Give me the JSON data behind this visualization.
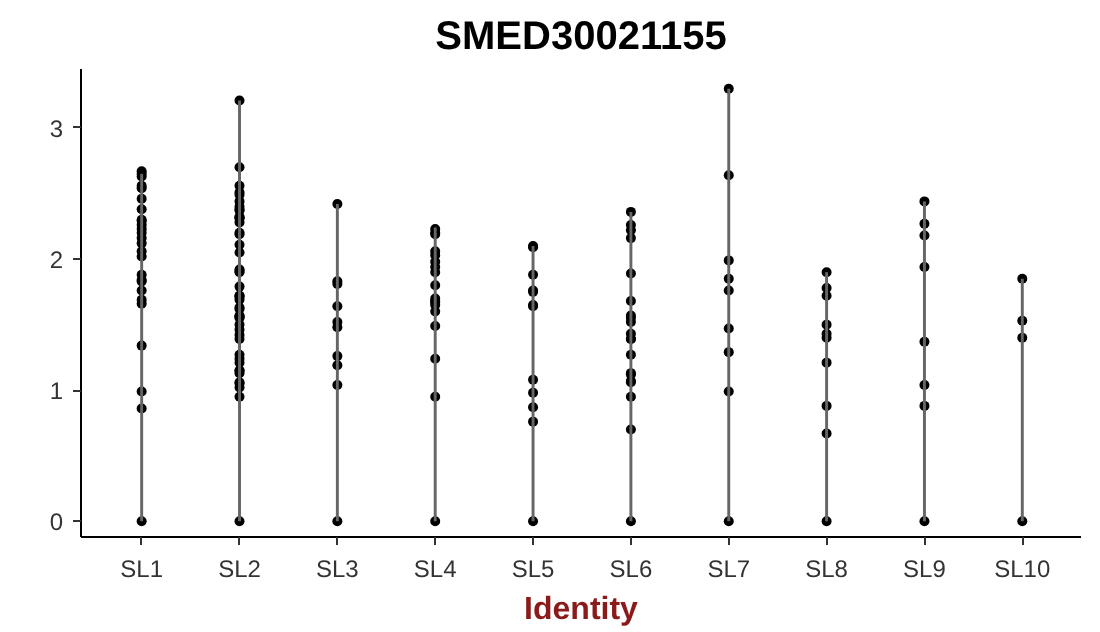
{
  "chart_data": {
    "type": "bar",
    "title": "SMED30021155",
    "xlabel": "Identity",
    "ylim": [
      -0.12,
      3.45
    ],
    "yticks": [
      0,
      1,
      2,
      3
    ],
    "categories": [
      "SL1",
      "SL2",
      "SL3",
      "SL4",
      "SL5",
      "SL6",
      "SL7",
      "SL8",
      "SL9",
      "SL10"
    ],
    "grid": false,
    "marker": "circle",
    "series": [
      {
        "color": "#666666",
        "values": [
          2.65,
          3.21,
          2.42,
          2.24,
          2.1,
          2.36,
          3.3,
          1.9,
          2.44,
          1.85
        ]
      },
      {
        "type": "scatter",
        "color": "#000000",
        "x": [
          "SL1",
          "SL1",
          "SL1",
          "SL1",
          "SL1",
          "SL1",
          "SL1",
          "SL1",
          "SL1",
          "SL1",
          "SL1",
          "SL1",
          "SL1",
          "SL1",
          "SL1",
          "SL1",
          "SL1",
          "SL1",
          "SL1",
          "SL1",
          "SL1",
          "SL1",
          "SL1",
          "SL1",
          "SL1",
          "SL1",
          "SL2",
          "SL2",
          "SL2",
          "SL2",
          "SL2",
          "SL2",
          "SL2",
          "SL2",
          "SL2",
          "SL2",
          "SL2",
          "SL2",
          "SL2",
          "SL2",
          "SL2",
          "SL2",
          "SL2",
          "SL2",
          "SL2",
          "SL2",
          "SL2",
          "SL2",
          "SL2",
          "SL2",
          "SL2",
          "SL2",
          "SL2",
          "SL2",
          "SL2",
          "SL2",
          "SL2",
          "SL2",
          "SL2",
          "SL2",
          "SL2",
          "SL2",
          "SL2",
          "SL2",
          "SL2",
          "SL2",
          "SL2",
          "SL2",
          "SL2",
          "SL2",
          "SL2",
          "SL2",
          "SL3",
          "SL3",
          "SL3",
          "SL3",
          "SL3",
          "SL3",
          "SL3",
          "SL3",
          "SL3",
          "SL3",
          "SL4",
          "SL4",
          "SL4",
          "SL4",
          "SL4",
          "SL4",
          "SL4",
          "SL4",
          "SL4",
          "SL4",
          "SL4",
          "SL4",
          "SL4",
          "SL4",
          "SL4",
          "SL4",
          "SL4",
          "SL4",
          "SL5",
          "SL5",
          "SL5",
          "SL5",
          "SL5",
          "SL5",
          "SL5",
          "SL5",
          "SL5",
          "SL5",
          "SL5",
          "SL5",
          "SL6",
          "SL6",
          "SL6",
          "SL6",
          "SL6",
          "SL6",
          "SL6",
          "SL6",
          "SL6",
          "SL6",
          "SL6",
          "SL6",
          "SL6",
          "SL6",
          "SL6",
          "SL6",
          "SL6",
          "SL6",
          "SL6",
          "SL6",
          "SL7",
          "SL7",
          "SL7",
          "SL7",
          "SL7",
          "SL7",
          "SL7",
          "SL7",
          "SL7",
          "SL8",
          "SL8",
          "SL8",
          "SL8",
          "SL8",
          "SL8",
          "SL8",
          "SL8",
          "SL8",
          "SL8",
          "SL9",
          "SL9",
          "SL9",
          "SL9",
          "SL9",
          "SL9",
          "SL9",
          "SL9",
          "SL10",
          "SL10",
          "SL10",
          "SL10"
        ],
        "values": [
          2.67,
          2.56,
          2.46,
          2.3,
          2.23,
          2.54,
          2.65,
          2.12,
          2.06,
          2.63,
          2.38,
          2.29,
          2.2,
          2.16,
          2.26,
          2.02,
          1.84,
          1.76,
          1.69,
          1.88,
          1.83,
          1.66,
          1.34,
          0.99,
          0.86,
          0,
          3.21,
          2.56,
          2.38,
          2.44,
          2.49,
          2.51,
          2.32,
          2.2,
          2.19,
          2.31,
          2.28,
          2.32,
          2.4,
          2.7,
          2.11,
          2.05,
          1.92,
          1.9,
          1.91,
          1.69,
          1.72,
          1.72,
          1.57,
          1.63,
          1.62,
          1.55,
          1.56,
          1.5,
          1.79,
          1.71,
          1.39,
          1.42,
          1.27,
          1.21,
          1.15,
          1.24,
          1.15,
          1.02,
          1.05,
          1.13,
          1.06,
          1.56,
          2.37,
          1.46,
          0.95,
          0,
          1.26,
          1.48,
          1.52,
          2.42,
          1.81,
          1.83,
          1.64,
          1.19,
          1.04,
          0,
          1.9,
          1.7,
          1.65,
          1.68,
          2.19,
          1.98,
          2.03,
          1.8,
          1.6,
          1.24,
          0.95,
          1.94,
          2.23,
          2.2,
          2.06,
          1.67,
          1.49,
          0,
          1.76,
          1.75,
          1.65,
          1.08,
          0.87,
          2.1,
          2.09,
          1.88,
          1.64,
          0.98,
          0.76,
          0,
          1.68,
          1.52,
          1.06,
          0.7,
          1.43,
          1.57,
          1.39,
          1.27,
          1.55,
          2.22,
          2.36,
          2.16,
          2.26,
          1.89,
          1.07,
          1.13,
          1.12,
          1.39,
          0.95,
          0,
          1.99,
          1.85,
          3.3,
          2.64,
          1.29,
          1.47,
          0.99,
          1.76,
          0,
          1.72,
          1.43,
          1.5,
          1.78,
          1.9,
          1.4,
          1.21,
          0.88,
          0.67,
          0,
          1.04,
          2.44,
          2.27,
          2.18,
          1.94,
          1.37,
          0.88,
          0,
          1.53,
          1.85,
          1.4,
          0
        ]
      }
    ]
  }
}
